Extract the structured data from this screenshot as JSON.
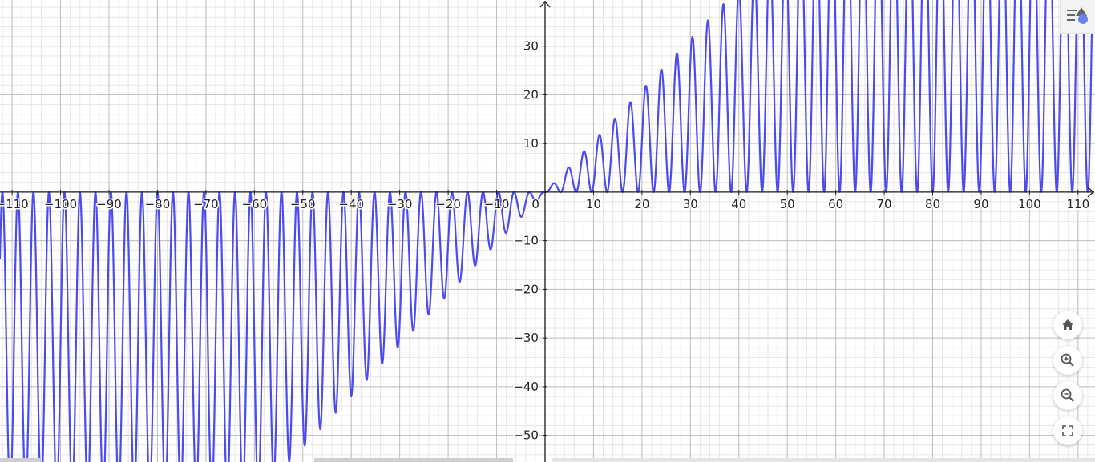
{
  "app": {
    "style_bar_icon": "style-bar-toggle-icon",
    "controls": [
      {
        "name": "home-button",
        "icon": "home-icon"
      },
      {
        "name": "zoom-in-button",
        "icon": "zoom-in-icon"
      },
      {
        "name": "zoom-out-button",
        "icon": "zoom-out-icon"
      },
      {
        "name": "fullscreen-button",
        "icon": "fullscreen-icon"
      }
    ]
  },
  "chart_data": {
    "type": "line",
    "title": "",
    "xlabel": "",
    "ylabel": "",
    "xlim": [
      -112.5,
      113.5
    ],
    "ylim": [
      -55.5,
      39.5
    ],
    "grid": true,
    "x_ticks": [
      -110,
      -100,
      -90,
      -80,
      -70,
      -60,
      -50,
      -40,
      -30,
      -20,
      -10,
      10,
      20,
      30,
      40,
      50,
      60,
      70,
      80,
      90,
      100,
      110
    ],
    "x_tick_labels": [
      "−110",
      "−100",
      "−90",
      "−80",
      "−70",
      "−60",
      "−50",
      "−40",
      "−30",
      "−20",
      "−10",
      "10",
      "20",
      "30",
      "40",
      "50",
      "60",
      "70",
      "80",
      "90",
      "100",
      "110"
    ],
    "y_ticks": [
      30,
      20,
      10,
      -10,
      -20,
      -30,
      -40,
      -50
    ],
    "y_tick_labels": [
      "30",
      "20",
      "10",
      "−10",
      "−20",
      "−30",
      "−40",
      "−50"
    ],
    "origin_label": "0",
    "series": [
      {
        "color": "#4b4bf0",
        "period": 3.2,
        "envelope_slope": 1.05,
        "sample_step": 0.04
      }
    ],
    "colors": {
      "curve": "#4b4bf0",
      "major_grid": "#bdbdbd",
      "minor_grid": "#e6e6e6",
      "axis": "#1a1a1a"
    }
  }
}
